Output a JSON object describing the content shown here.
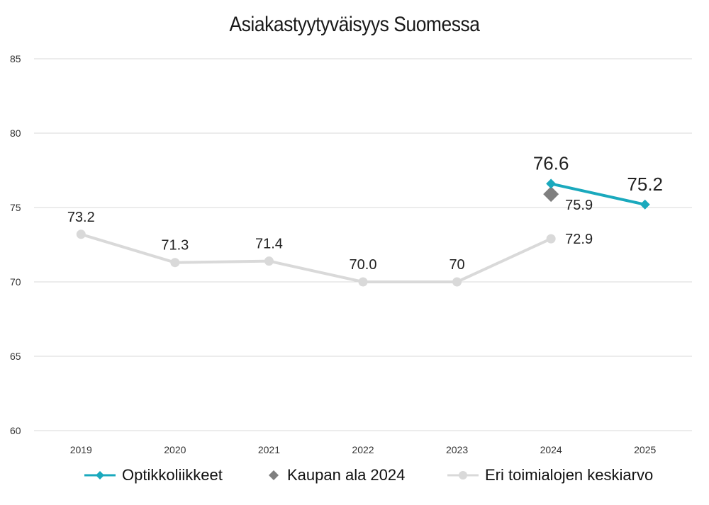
{
  "chart_data": {
    "type": "line",
    "title": "Asiakastyytyväisyys Suomessa",
    "categories": [
      "2019",
      "2020",
      "2021",
      "2022",
      "2023",
      "2024",
      "2025"
    ],
    "ylim": [
      60,
      85
    ],
    "yticks": [
      "60",
      "65",
      "70",
      "75",
      "80",
      "85"
    ],
    "grid": true,
    "legend_position": "bottom",
    "series": [
      {
        "name": "Optikkoliikkeet",
        "color": "#1aa9bd",
        "marker": "diamond",
        "values": [
          null,
          null,
          null,
          null,
          null,
          76.6,
          75.2
        ],
        "labels": [
          "",
          "",
          "",
          "",
          "",
          "76.6",
          "75.2"
        ]
      },
      {
        "name": "Kaupan ala 2024",
        "color": "#7f7f7f",
        "marker": "diamond",
        "values": [
          null,
          null,
          null,
          null,
          null,
          75.9,
          null
        ],
        "labels": [
          "",
          "",
          "",
          "",
          "",
          "75.9",
          ""
        ]
      },
      {
        "name": "Eri toimialojen keskiarvo",
        "color": "#d9d9d9",
        "marker": "circle",
        "values": [
          73.2,
          71.3,
          71.4,
          70.0,
          70.0,
          72.9,
          null
        ],
        "labels": [
          "73.2",
          "71.3",
          "71.4",
          "70.0",
          "70",
          "72.9",
          ""
        ]
      }
    ]
  }
}
